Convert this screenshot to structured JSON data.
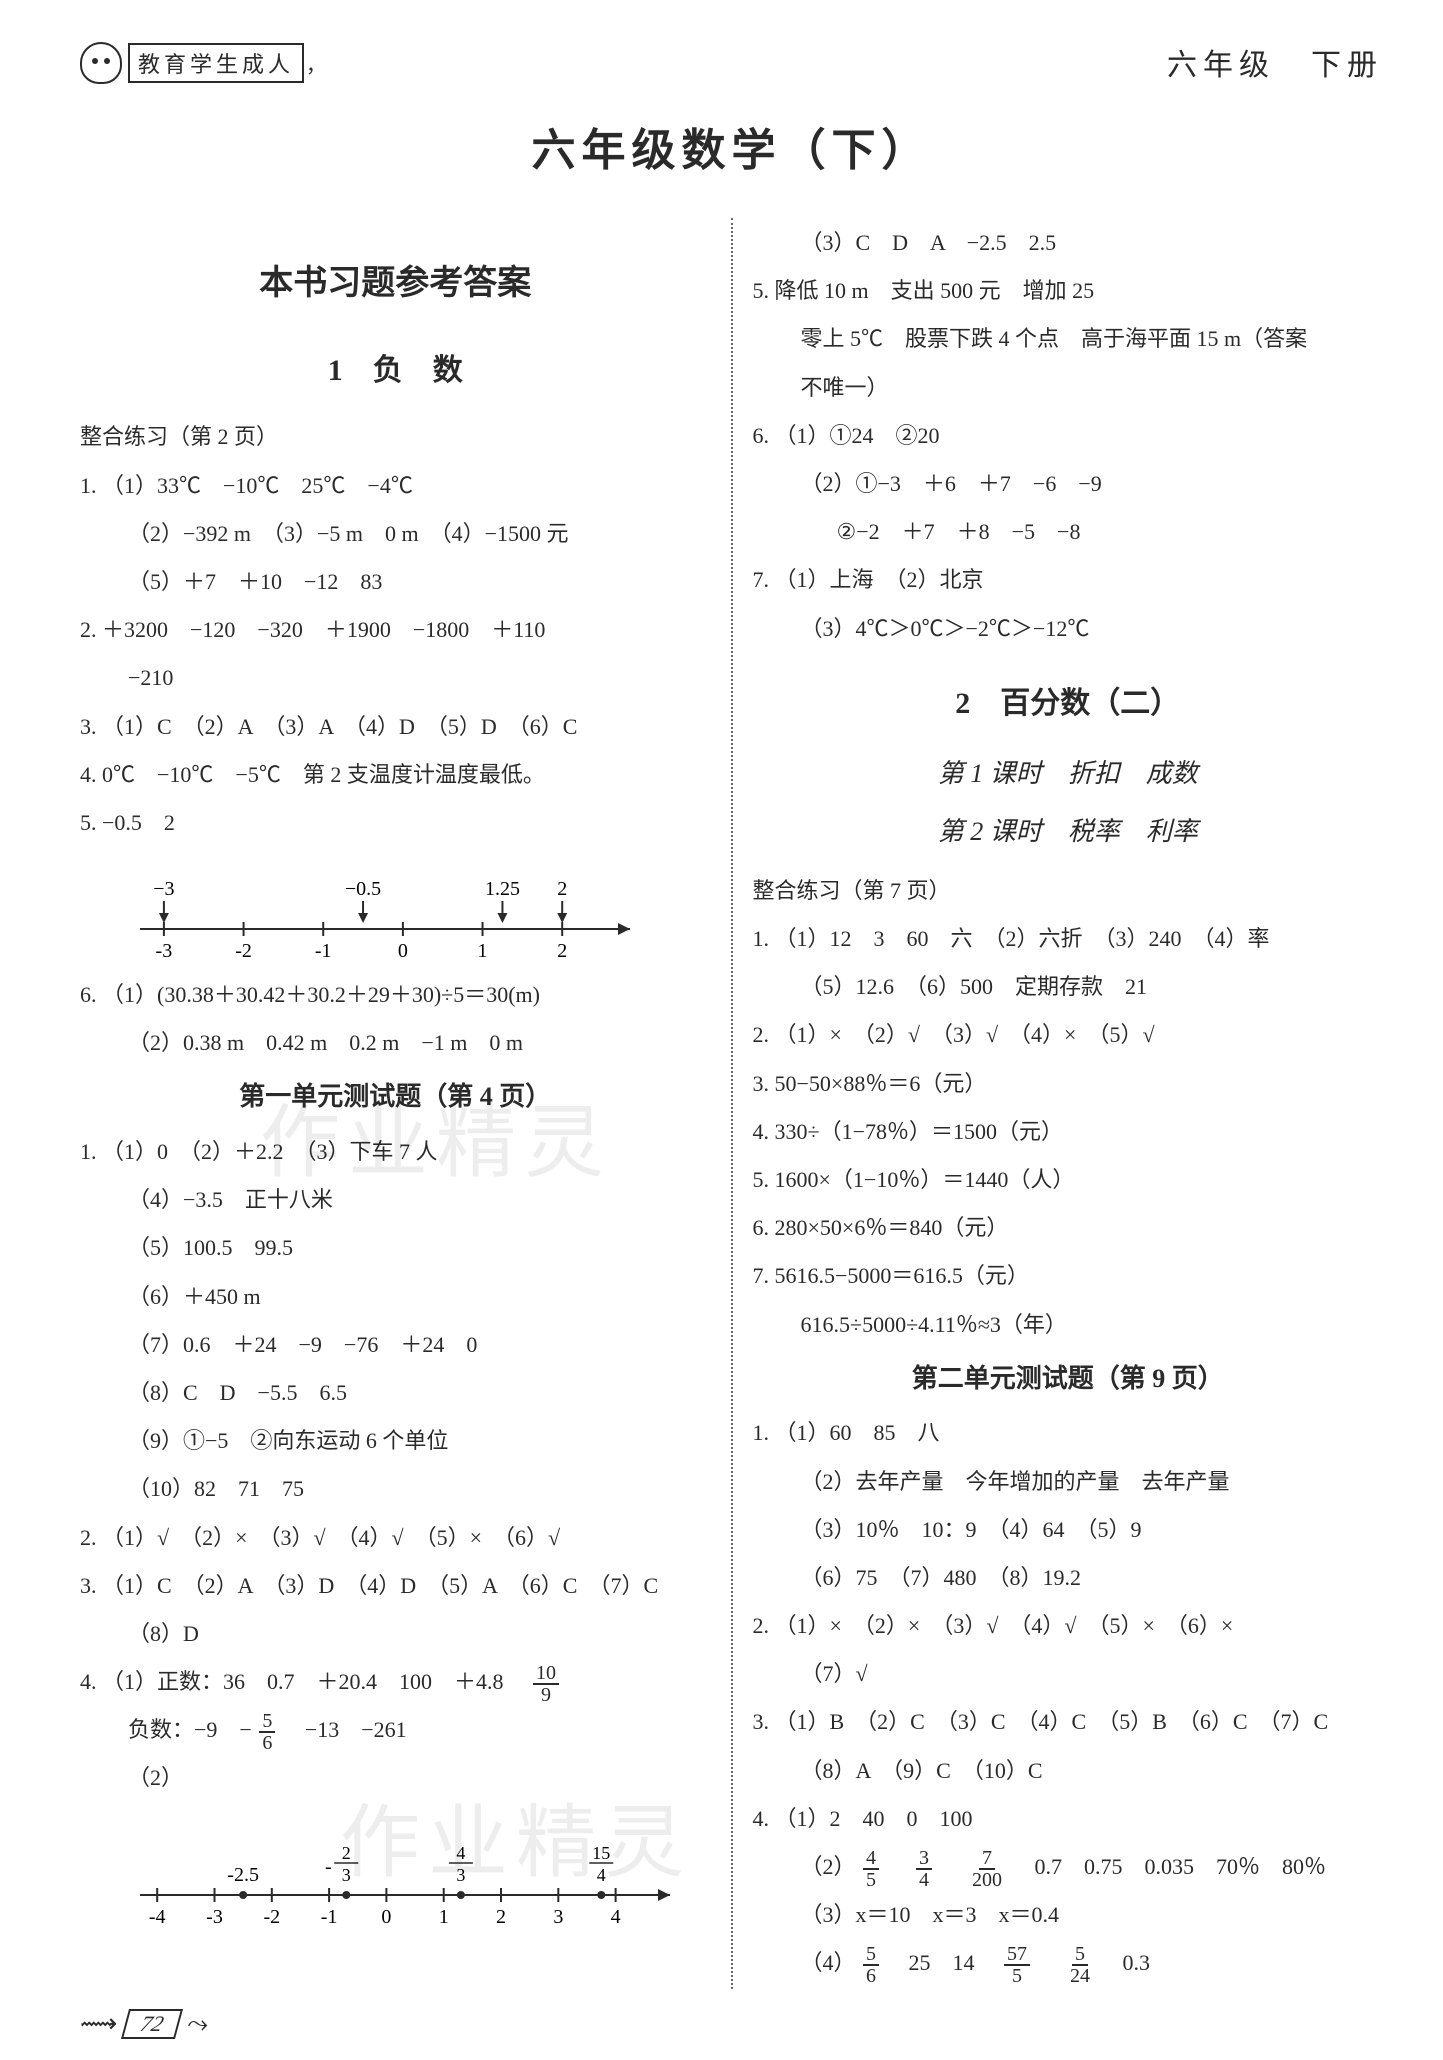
{
  "header": {
    "logo_text": "教育学生成人",
    "logo_tail": "，",
    "grade": "六年级　下册"
  },
  "title": "六年级数学（下）",
  "left": {
    "answers_heading": "本书习题参考答案",
    "chapter1": "1　负　数",
    "ex1_label": "整合练习（第 2 页）",
    "q1_1": "1. （1）33℃　−10℃　25℃　−4℃",
    "q1_2": "（2）−392 m　（3）−5 m　0 m　（4）−1500 元",
    "q1_3": "（5）＋7　＋10　−12　83",
    "q2_1": "2. ＋3200　−120　−320　＋1900　−1800　＋110",
    "q2_2": "−210",
    "q3": "3. （1）C　（2）A　（3）A　（4）D　（5）D　（6）C",
    "q4": "4. 0℃　−10℃　−5℃　第 2 支温度计温度最低。",
    "q5": "5. −0.5　2",
    "nl1": {
      "ticks": [
        "-3",
        "-2",
        "-1",
        "0",
        "1",
        "2"
      ],
      "top_labels": [
        {
          "x": -3,
          "text": "−3"
        },
        {
          "x": -0.5,
          "text": "−0.5"
        },
        {
          "x": 1.25,
          "text": "1.25"
        },
        {
          "x": 2,
          "text": "2"
        }
      ],
      "xmin": -3.3,
      "xmax": 2.6,
      "line_color": "#2a2a2a",
      "tick_fontsize": 20
    },
    "q6_1": "6. （1）(30.38＋30.42＋30.2＋29＋30)÷5＝30(m)",
    "q6_2": "（2）0.38 m　0.42 m　0.2 m　−1 m　0 m",
    "unit_test1": "第一单元测试题（第 4 页）",
    "u1_1": "1. （1）0　（2）＋2.2　（3）下车 7 人",
    "u1_2": "（4）−3.5　正十八米",
    "u1_3": "（5）100.5　99.5",
    "u1_4": "（6）＋450 m",
    "u1_5": "（7）0.6　＋24　−9　−76　＋24　0",
    "u1_6": "（8）C　D　−5.5　6.5",
    "u1_7": "（9）①−5　②向东运动 6 个单位",
    "u1_8": "（10）82　71　75",
    "u2": "2. （1）√　（2）×　（3）√　（4）√　（5）×　（6）√",
    "u3_1": "3. （1）C　（2）A　（3）D　（4）D　（5）A　（6）C　（7）C",
    "u3_2": "（8）D",
    "u4_1_pre": "4. （1）正数：36　0.7　＋20.4　100　＋4.8　",
    "u4_1_frac": {
      "num": "10",
      "den": "9"
    },
    "u4_neg_pre": "负数：−9　−",
    "u4_neg_frac": {
      "num": "5",
      "den": "6"
    },
    "u4_neg_post": "　−13　−261",
    "u4_2_label": "（2）",
    "nl2": {
      "ticks": [
        "-4",
        "-3",
        "-2",
        "-1",
        "0",
        "1",
        "2",
        "3",
        "4"
      ],
      "top_points": [
        {
          "x": -2.5,
          "text": "-2.5"
        },
        {
          "x": -0.7,
          "text_frac": {
            "pre": "-",
            "num": "2",
            "den": "3"
          }
        },
        {
          "x": 1.3,
          "text_frac": {
            "num": "4",
            "den": "3"
          }
        },
        {
          "x": 3.75,
          "text_frac": {
            "num": "15",
            "den": "4"
          }
        }
      ],
      "xmin": -4.3,
      "xmax": 4.6,
      "line_color": "#2a2a2a",
      "tick_fontsize": 20
    }
  },
  "right": {
    "r1": "（3）C　D　A　−2.5　2.5",
    "r5_1": "5. 降低 10 m　支出 500 元　增加 25",
    "r5_2": "零上 5℃　股票下跌 4 个点　高于海平面 15 m（答案",
    "r5_3": "不唯一）",
    "r6_1": "6. （1）①24　②20",
    "r6_2": "（2）①−3　＋6　＋7　−6　−9",
    "r6_3": "②−2　＋7　＋8　−5　−8",
    "r7_1": "7. （1）上海　（2）北京",
    "r7_2": "（3）4℃＞0℃＞−2℃＞−12℃",
    "chapter2": "2　百分数（二）",
    "sub1": "第 1 课时　折扣　成数",
    "sub2": "第 2 课时　税率　利率",
    "ex2_label": "整合练习（第 7 页）",
    "p1": "1. （1）12　3　60　六　（2）六折　（3）240　（4）率",
    "p1b": "（5）12.6　（6）500　定期存款　21",
    "p2": "2. （1）×　（2）√　（3）√　（4）×　（5）√",
    "p3": "3. 50−50×88％＝6（元）",
    "p4": "4. 330÷（1−78％）＝1500（元）",
    "p5": "5. 1600×（1−10％）＝1440（人）",
    "p6": "6. 280×50×6％＝840（元）",
    "p7_1": "7. 5616.5−5000＝616.5（元）",
    "p7_2": "616.5÷5000÷4.11％≈3（年）",
    "unit_test2": "第二单元测试题（第 9 页）",
    "t1_1": "1. （1）60　85　八",
    "t1_2": "（2）去年产量　今年增加的产量　去年产量",
    "t1_3": "（3）10％　10：9　（4）64　（5）9",
    "t1_4": "（6）75　（7）480　（8）19.2",
    "t2_1": "2. （1）×　（2）×　（3）√　（4）√　（5）×　（6）×",
    "t2_2": "（7）√",
    "t3_1": "3. （1）B　（2）C　（3）C　（4）C　（5）B　（6）C　（7）C",
    "t3_2": "（8）A　（9）C　（10）C",
    "t4_1": "4. （1）2　40　0　100",
    "t4_2_pre": "（2）",
    "t4_2_fracs": [
      {
        "num": "4",
        "den": "5"
      },
      {
        "num": "3",
        "den": "4"
      },
      {
        "num": "7",
        "den": "200"
      }
    ],
    "t4_2_post": "　0.7　0.75　0.035　70％　80％",
    "t4_3": "（3）x＝10　x＝3　x＝0.4",
    "t4_4_pre": "（4）",
    "t4_4_f1": {
      "num": "5",
      "den": "6"
    },
    "t4_4_mid": "　25　14　",
    "t4_4_f2": {
      "num": "57",
      "den": "5"
    },
    "t4_4_f3": {
      "num": "5",
      "den": "24"
    },
    "t4_4_post": "　0.3"
  },
  "watermark_text": "作业精灵",
  "page_number": "72",
  "colors": {
    "text": "#2a2a2a",
    "bg": "#ffffff",
    "divider": "#666666",
    "watermark": "rgba(0,0,0,0.07)"
  }
}
